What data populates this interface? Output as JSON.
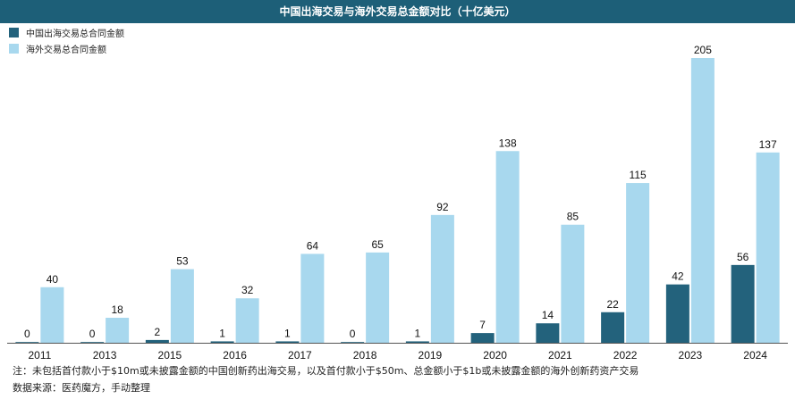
{
  "chart_data": {
    "type": "bar",
    "title": "中国出海交易与海外交易总金额对比（十亿美元）",
    "categories": [
      "2011",
      "2013",
      "2015",
      "2016",
      "2017",
      "2018",
      "2019",
      "2020",
      "2021",
      "2022",
      "2023",
      "2024"
    ],
    "series": [
      {
        "name": "中国出海交易总合同金额",
        "color": "#23627c",
        "values": [
          0,
          0,
          2,
          1,
          1,
          0,
          1,
          7,
          14,
          22,
          42,
          56
        ]
      },
      {
        "name": "海外交易总合同金额",
        "color": "#a8d8ee",
        "values": [
          40,
          18,
          53,
          32,
          64,
          65,
          92,
          138,
          85,
          115,
          205,
          137
        ]
      }
    ],
    "ylim": [
      0,
      210
    ],
    "grid": false,
    "legend_position": "top-left"
  },
  "footnote": {
    "note": "注：未包括首付款小于$10m或未披露金额的中国创新药出海交易，以及首付款小于$50m、总金额小于$1b或未披露金额的海外创新药资产交易",
    "source": "数据来源：医药魔方，手动整理"
  }
}
